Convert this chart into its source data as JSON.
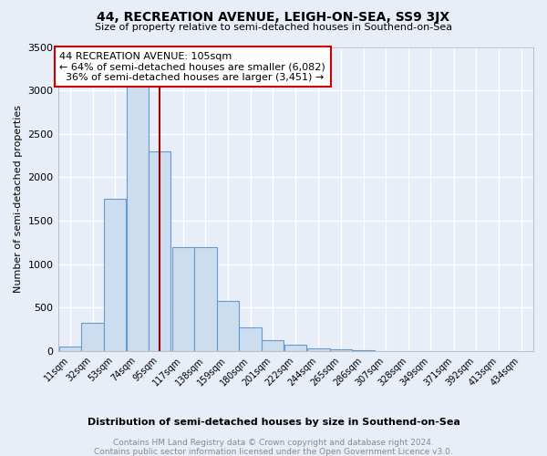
{
  "title": "44, RECREATION AVENUE, LEIGH-ON-SEA, SS9 3JX",
  "subtitle": "Size of property relative to semi-detached houses in Southend-on-Sea",
  "xlabel": "Distribution of semi-detached houses by size in Southend-on-Sea",
  "ylabel": "Number of semi-detached properties",
  "footer1": "Contains HM Land Registry data © Crown copyright and database right 2024.",
  "footer2": "Contains public sector information licensed under the Open Government Licence v3.0.",
  "annotation_line1": "44 RECREATION AVENUE: 105sqm",
  "annotation_line2": "← 64% of semi-detached houses are smaller (6,082)",
  "annotation_line3": "  36% of semi-detached houses are larger (3,451) →",
  "property_size": 105,
  "bins": [
    11,
    32,
    53,
    74,
    95,
    117,
    138,
    159,
    180,
    201,
    222,
    244,
    265,
    286,
    307,
    328,
    349,
    371,
    392,
    413,
    434
  ],
  "bin_width": 21,
  "counts": [
    50,
    325,
    1750,
    3050,
    2300,
    1200,
    1200,
    575,
    275,
    125,
    75,
    30,
    20,
    10,
    5,
    3,
    2,
    2,
    1,
    1
  ],
  "bar_color": "#ccddf0",
  "bar_edge_color": "#6699cc",
  "vline_color": "#990000",
  "annotation_box_facecolor": "#ffffff",
  "annotation_box_edgecolor": "#cc0000",
  "background_color": "#e8eef8",
  "plot_bg_color": "#e8eef8",
  "grid_color": "#ffffff",
  "ylim": [
    0,
    3500
  ],
  "yticks": [
    0,
    500,
    1000,
    1500,
    2000,
    2500,
    3000,
    3500
  ]
}
